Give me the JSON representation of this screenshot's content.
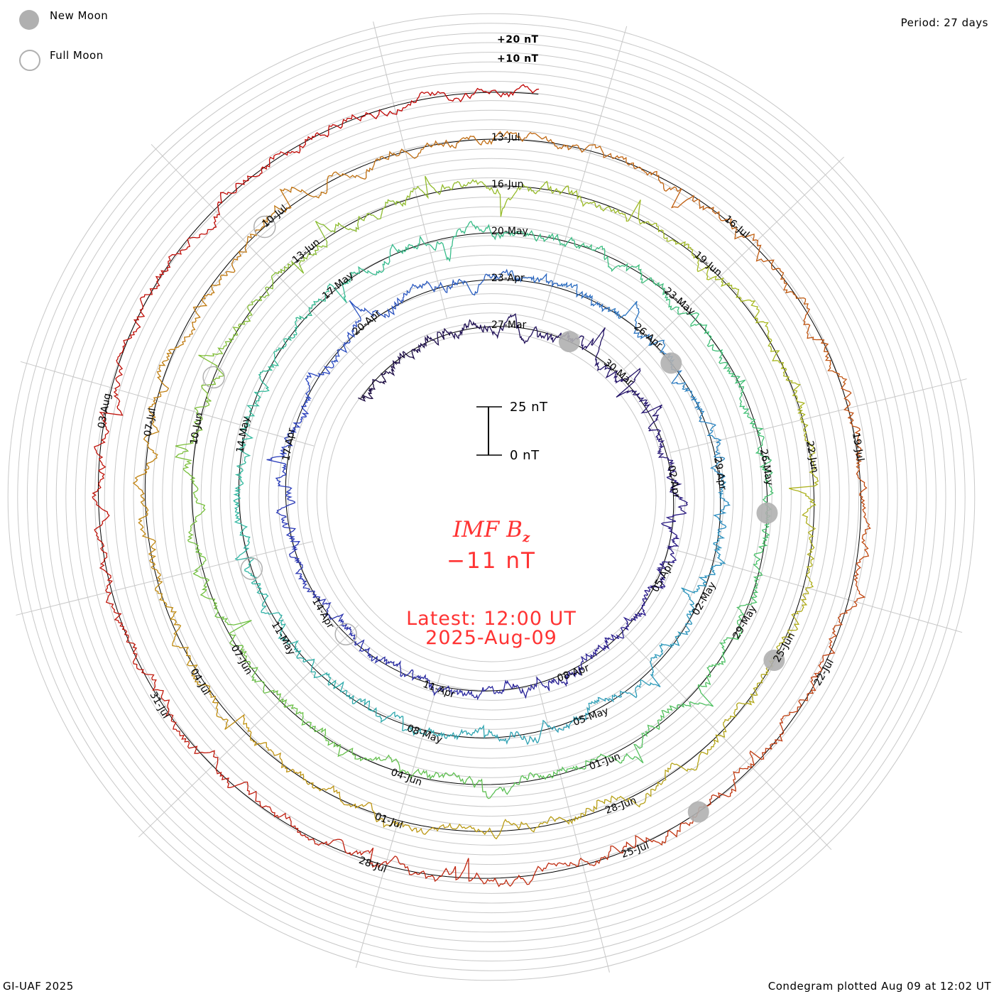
{
  "legend": {
    "new_moon": "New Moon",
    "full_moon": "Full Moon",
    "moon_color": "#b0b0b0"
  },
  "period_label": "Period: 27 days",
  "footer_left": "GI-UAF 2025",
  "footer_right": "Condegram plotted Aug 09 at 12:02 UT",
  "scale_bar": {
    "top_label": "25 nT",
    "bottom_label": "0 nT",
    "length_nT": 25
  },
  "center": {
    "title": "IMF B",
    "title_sub": "z",
    "value": "−11 nT",
    "latest_line1": "Latest: 12:00 UT",
    "latest_line2": "2025-Aug-09"
  },
  "chart_data": {
    "type": "line",
    "subtype": "condegram-spiral",
    "title": "IMF Bz",
    "units": "nT",
    "period_days": 27,
    "loop_reference_date": "2025-03-27",
    "start_date": "2025-03-23",
    "end_date": "2025-08-09T12:00",
    "latest_value": -11,
    "outer_grid_labels": [
      "+20 nT",
      "+10 nT"
    ],
    "date_labels": [
      "27-Mar",
      "30-Mar",
      "02-Apr",
      "05-Apr",
      "08-Apr",
      "11-Apr",
      "14-Apr",
      "17-Apr",
      "20-Apr",
      "23-Apr",
      "26-Apr",
      "29-Apr",
      "02-May",
      "05-May",
      "08-May",
      "11-May",
      "14-May",
      "17-May",
      "20-May",
      "23-May",
      "26-May",
      "29-May",
      "01-Jun",
      "04-Jun",
      "07-Jun",
      "10-Jun",
      "13-Jun",
      "16-Jun",
      "19-Jun",
      "22-Jun",
      "25-Jun",
      "28-Jun",
      "01-Jul",
      "04-Jul",
      "07-Jul",
      "10-Jul",
      "13-Jul",
      "16-Jul",
      "19-Jul",
      "22-Jul",
      "25-Jul",
      "28-Jul",
      "31-Jul",
      "03-Aug"
    ],
    "new_moons": [
      "2025-03-29",
      "2025-04-27",
      "2025-05-27",
      "2025-06-25",
      "2025-07-24"
    ],
    "full_moons": [
      "2025-04-13",
      "2025-05-12",
      "2025-06-11",
      "2025-07-10"
    ],
    "color_ramp": [
      "#1a0a40",
      "#2a1a8a",
      "#2a40c0",
      "#2a90c0",
      "#30b8a0",
      "#40c070",
      "#70c040",
      "#a8b820",
      "#c09010",
      "#c06010",
      "#c02010",
      "#c00000"
    ]
  }
}
